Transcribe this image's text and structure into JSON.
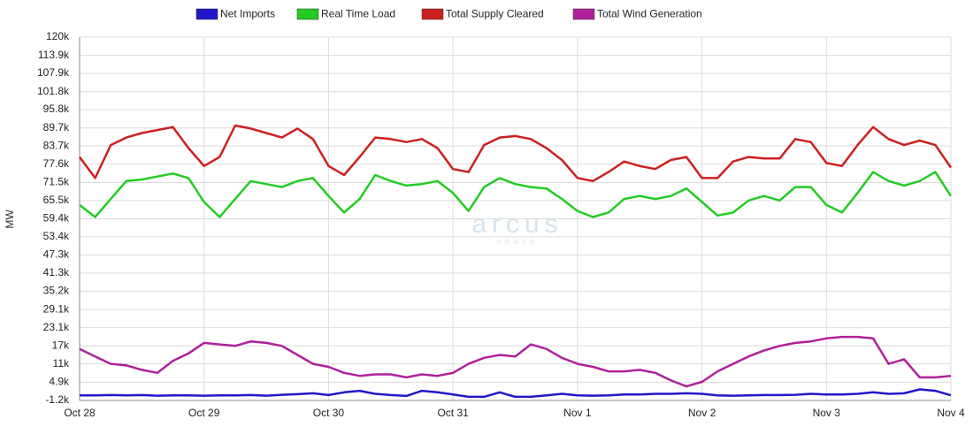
{
  "chart_data": {
    "type": "line",
    "y_label": "MW",
    "watermark": "arcus",
    "watermark_sub": "POWER",
    "legend": "top",
    "grid": true,
    "x": [
      0,
      0.125,
      0.25,
      0.375,
      0.5,
      0.625,
      0.75,
      0.875,
      1,
      1.125,
      1.25,
      1.375,
      1.5,
      1.625,
      1.75,
      1.875,
      2,
      2.125,
      2.25,
      2.375,
      2.5,
      2.625,
      2.75,
      2.875,
      3,
      3.125,
      3.25,
      3.375,
      3.5,
      3.625,
      3.75,
      3.875,
      4,
      4.125,
      4.25,
      4.375,
      4.5,
      4.625,
      4.75,
      4.875,
      5,
      5.125,
      5.25,
      5.375,
      5.5,
      5.625,
      5.75,
      5.875,
      6,
      6.125,
      6.25,
      6.375,
      6.5,
      6.625,
      6.75,
      6.875,
      7
    ],
    "xlim": [
      0,
      7
    ],
    "xticks": [
      {
        "value": 0,
        "label": "Oct 28"
      },
      {
        "value": 1,
        "label": "Oct 29"
      },
      {
        "value": 2,
        "label": "Oct 30"
      },
      {
        "value": 3,
        "label": "Oct 31"
      },
      {
        "value": 4,
        "label": "Nov 1"
      },
      {
        "value": 5,
        "label": "Nov 2"
      },
      {
        "value": 6,
        "label": "Nov 3"
      },
      {
        "value": 7,
        "label": "Nov 4"
      }
    ],
    "ylim": [
      -1200,
      120000
    ],
    "yticks": [
      {
        "value": -1200,
        "label": "-1.2k"
      },
      {
        "value": 4900,
        "label": "4.9k"
      },
      {
        "value": 11000,
        "label": "11k"
      },
      {
        "value": 17000,
        "label": "17k"
      },
      {
        "value": 23100,
        "label": "23.1k"
      },
      {
        "value": 29100,
        "label": "29.1k"
      },
      {
        "value": 35200,
        "label": "35.2k"
      },
      {
        "value": 41300,
        "label": "41.3k"
      },
      {
        "value": 47300,
        "label": "47.3k"
      },
      {
        "value": 53400,
        "label": "53.4k"
      },
      {
        "value": 59400,
        "label": "59.4k"
      },
      {
        "value": 65500,
        "label": "65.5k"
      },
      {
        "value": 71500,
        "label": "71.5k"
      },
      {
        "value": 77600,
        "label": "77.6k"
      },
      {
        "value": 83700,
        "label": "83.7k"
      },
      {
        "value": 89700,
        "label": "89.7k"
      },
      {
        "value": 95800,
        "label": "95.8k"
      },
      {
        "value": 101800,
        "label": "101.8k"
      },
      {
        "value": 107900,
        "label": "107.9k"
      },
      {
        "value": 113900,
        "label": "113.9k"
      },
      {
        "value": 120000,
        "label": "120k"
      }
    ],
    "series": [
      {
        "name": "Net Imports",
        "color": "#2018c8",
        "values": [
          500,
          500,
          600,
          500,
          600,
          400,
          500,
          500,
          400,
          500,
          500,
          600,
          400,
          700,
          900,
          1200,
          600,
          1500,
          2000,
          1000,
          600,
          300,
          2000,
          1500,
          800,
          0,
          0,
          1500,
          0,
          0,
          500,
          1000,
          500,
          400,
          500,
          800,
          800,
          1000,
          1000,
          1200,
          1000,
          500,
          400,
          500,
          600,
          600,
          700,
          1000,
          800,
          800,
          1000,
          1500,
          1000,
          1200,
          2500,
          2000,
          500
        ]
      },
      {
        "name": "Real Time Load",
        "color": "#22cc22",
        "values": [
          64000,
          60000,
          66000,
          72000,
          72500,
          73500,
          74500,
          73000,
          65000,
          60000,
          66000,
          72000,
          71000,
          70000,
          72000,
          73000,
          67000,
          61500,
          66000,
          74000,
          72000,
          70500,
          71000,
          72000,
          68000,
          62000,
          70000,
          73000,
          71000,
          70000,
          69500,
          66000,
          62000,
          60000,
          61500,
          66000,
          67000,
          66000,
          67000,
          69500,
          65000,
          60500,
          61500,
          65500,
          67000,
          65500,
          70000,
          70000,
          64000,
          61500,
          68000,
          75000,
          72000,
          70500,
          72000,
          75000,
          67000
        ]
      },
      {
        "name": "Total Supply Cleared",
        "color": "#cc2020",
        "values": [
          80000,
          73000,
          84000,
          86500,
          88000,
          89000,
          90000,
          83000,
          77000,
          80000,
          90500,
          89500,
          88000,
          86500,
          89500,
          86000,
          77000,
          74000,
          80000,
          86500,
          86000,
          85000,
          86000,
          83000,
          76000,
          75000,
          84000,
          86500,
          87000,
          86000,
          83000,
          79000,
          73000,
          72000,
          75000,
          78500,
          77000,
          76000,
          79000,
          80000,
          73000,
          73000,
          78500,
          80000,
          79500,
          79500,
          86000,
          85000,
          78000,
          77000,
          84000,
          90000,
          86000,
          84000,
          85500,
          84000,
          76500
        ]
      },
      {
        "name": "Total Wind Generation",
        "color": "#b0209a",
        "values": [
          16000,
          13500,
          11000,
          10500,
          9000,
          8000,
          12000,
          14500,
          18000,
          17500,
          17000,
          18500,
          18000,
          17000,
          14000,
          11000,
          10000,
          8000,
          7000,
          7500,
          7500,
          6500,
          7500,
          7000,
          8000,
          11000,
          13000,
          14000,
          13500,
          17500,
          16000,
          13000,
          11000,
          10000,
          8500,
          8500,
          9000,
          8000,
          5500,
          3500,
          5000,
          8500,
          11000,
          13500,
          15500,
          17000,
          18000,
          18500,
          19500,
          20000,
          20000,
          19500,
          11000,
          12500,
          6500,
          6500,
          7000
        ]
      }
    ]
  }
}
